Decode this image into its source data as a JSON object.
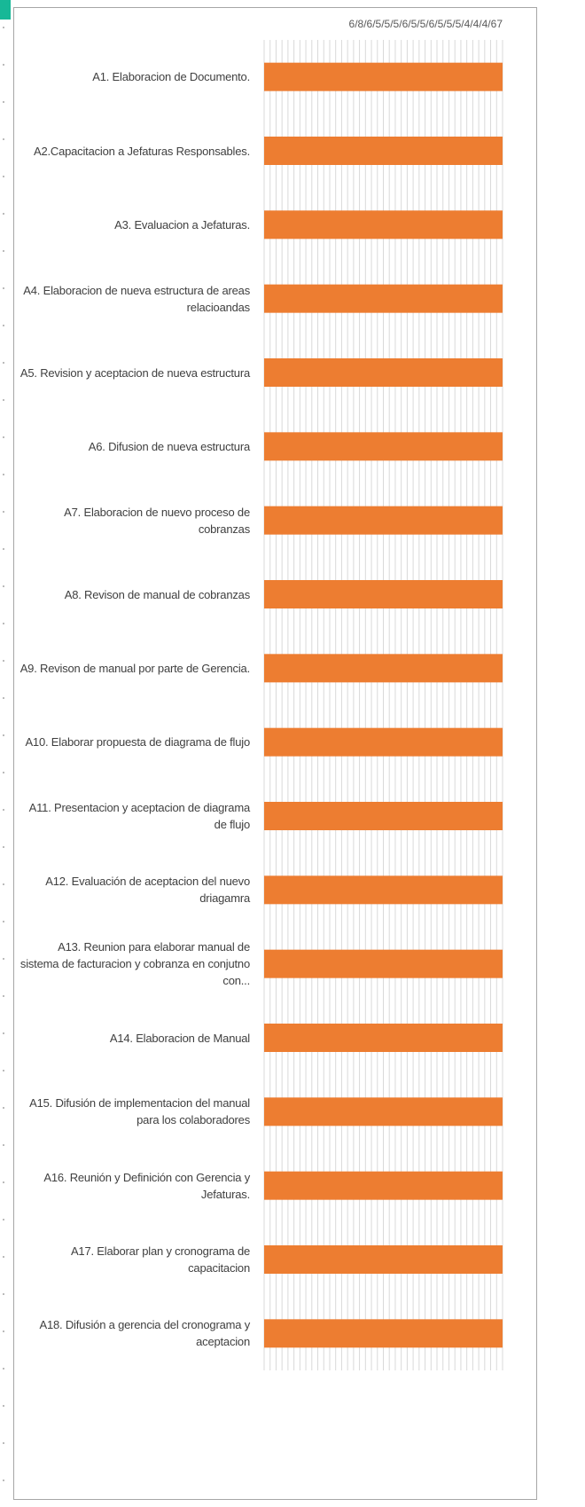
{
  "chart_data": {
    "type": "bar",
    "orientation": "horizontal",
    "x_axis_annotation": "6/8/6/5/5/5/6/5/5/6/5/5/5/4/4/4/67",
    "categories": [
      "A1. Elaboracion de Documento.",
      "A2.Capacitacion a Jefaturas Responsables.",
      "A3. Evaluacion a Jefaturas.",
      "A4. Elaboracion de nueva estructura de areas relacioandas",
      "A5. Revision y aceptacion de nueva estructura",
      "A6. Difusion de nueva estructura",
      "A7. Elaboracion de nuevo proceso de cobranzas",
      "A8. Revison de manual de cobranzas",
      "A9.  Revison de manual por parte de Gerencia.",
      "A10. Elaborar propuesta de diagrama de flujo",
      "A11. Presentacion y aceptacion de diagrama de flujo",
      "A12. Evaluación de aceptacion del nuevo driagamra",
      "A13. Reunion para elaborar manual de sistema de facturacion y cobranza en conjutno con...",
      "A14. Elaboracion de  Manual",
      "A15. Difusión de implementacion del manual para los colaboradores",
      "A16. Reunión y Definición con Gerencia y Jefaturas.",
      "A17. Elaborar plan y cronograma de capacitacion",
      "A18. Difusión a gerencia del cronograma y aceptacion"
    ],
    "values": [
      100,
      100,
      100,
      100,
      100,
      100,
      100,
      100,
      100,
      100,
      100,
      100,
      100,
      100,
      100,
      100,
      100,
      100
    ],
    "color": "#ed7d31",
    "xlim": [
      0,
      100
    ],
    "xticks": [
      0,
      2.5,
      5,
      7.5,
      10,
      12.5,
      15,
      17.5,
      20,
      22.5,
      25,
      27.5,
      30,
      32.5,
      35,
      37.5,
      40,
      42.5,
      45,
      47.5,
      50,
      52.5,
      55,
      57.5,
      60,
      62.5,
      65,
      67.5,
      70,
      72.5,
      75,
      77.5,
      80,
      82.5,
      85,
      87.5,
      90,
      92.5,
      95,
      97.5,
      100
    ],
    "grid": true
  }
}
